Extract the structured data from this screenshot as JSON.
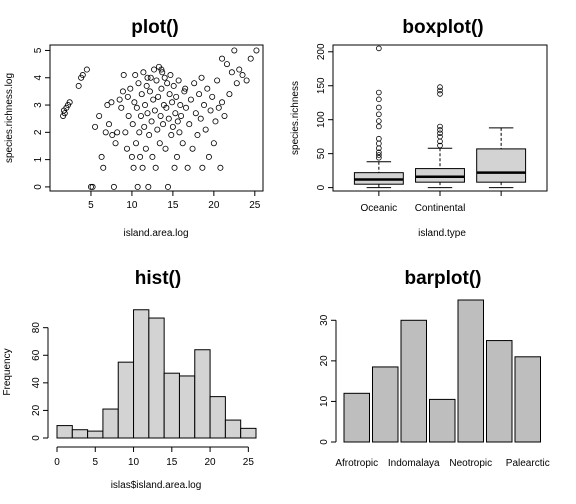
{
  "chart_data": [
    {
      "type": "scatter",
      "title": "plot()",
      "xlabel": "island.area.log",
      "ylabel": "species.richness.log",
      "xlim": [
        0,
        26
      ],
      "ylim": [
        -0.15,
        5.2
      ],
      "x_ticks": [
        "5",
        "10",
        "15",
        "20",
        "25"
      ],
      "y_ticks": [
        "0",
        "1",
        "2",
        "3",
        "4",
        "5"
      ],
      "points": [
        [
          1.6,
          2.6
        ],
        [
          1.8,
          2.7
        ],
        [
          2.0,
          2.9
        ],
        [
          2.2,
          3.0
        ],
        [
          2.4,
          3.1
        ],
        [
          1.7,
          2.8
        ],
        [
          3.5,
          3.7
        ],
        [
          3.8,
          4.0
        ],
        [
          4.0,
          4.1
        ],
        [
          4.5,
          4.3
        ],
        [
          5.0,
          0
        ],
        [
          5.2,
          0
        ],
        [
          5.5,
          2.2
        ],
        [
          6.0,
          2.6
        ],
        [
          6.3,
          1.1
        ],
        [
          6.5,
          0.7
        ],
        [
          7.0,
          3.0
        ],
        [
          7.2,
          2.3
        ],
        [
          7.5,
          3.1
        ],
        [
          7.8,
          0
        ],
        [
          8.0,
          1.6
        ],
        [
          8.2,
          2.0
        ],
        [
          8.5,
          3.2
        ],
        [
          8.7,
          2.9
        ],
        [
          8.9,
          3.5
        ],
        [
          9.0,
          4.1
        ],
        [
          9.2,
          2.0
        ],
        [
          9.4,
          1.4
        ],
        [
          9.6,
          2.6
        ],
        [
          9.8,
          3.6
        ],
        [
          10.0,
          1.1
        ],
        [
          10.1,
          2.3
        ],
        [
          10.2,
          0.7
        ],
        [
          10.3,
          3.1
        ],
        [
          10.4,
          4.1
        ],
        [
          10.5,
          1.6
        ],
        [
          10.6,
          2.9
        ],
        [
          10.7,
          0
        ],
        [
          10.8,
          3.8
        ],
        [
          10.9,
          2.0
        ],
        [
          11.0,
          1.1
        ],
        [
          11.1,
          2.6
        ],
        [
          11.2,
          3.4
        ],
        [
          11.3,
          0.7
        ],
        [
          11.4,
          4.2
        ],
        [
          11.5,
          2.2
        ],
        [
          11.6,
          3.0
        ],
        [
          11.7,
          1.4
        ],
        [
          11.8,
          3.7
        ],
        [
          11.9,
          2.7
        ],
        [
          12.0,
          0
        ],
        [
          12.1,
          1.9
        ],
        [
          12.2,
          3.5
        ],
        [
          12.3,
          4.0
        ],
        [
          12.4,
          2.4
        ],
        [
          12.5,
          1.1
        ],
        [
          12.6,
          3.2
        ],
        [
          12.7,
          4.3
        ],
        [
          12.8,
          2.8
        ],
        [
          12.9,
          0.7
        ],
        [
          13.0,
          3.9
        ],
        [
          13.1,
          2.1
        ],
        [
          13.2,
          3.3
        ],
        [
          13.3,
          4.4
        ],
        [
          13.4,
          1.6
        ],
        [
          13.5,
          2.6
        ],
        [
          13.6,
          3.6
        ],
        [
          13.7,
          4.2
        ],
        [
          13.8,
          2.3
        ],
        [
          13.9,
          3.0
        ],
        [
          14.0,
          4.0
        ],
        [
          14.1,
          1.4
        ],
        [
          14.2,
          2.9
        ],
        [
          14.3,
          3.8
        ],
        [
          14.4,
          0
        ],
        [
          14.5,
          2.5
        ],
        [
          14.6,
          3.4
        ],
        [
          14.7,
          4.1
        ],
        [
          14.8,
          1.9
        ],
        [
          14.9,
          3.1
        ],
        [
          15.0,
          2.2
        ],
        [
          15.1,
          3.7
        ],
        [
          15.2,
          0.7
        ],
        [
          15.3,
          2.7
        ],
        [
          15.4,
          3.3
        ],
        [
          15.5,
          1.1
        ],
        [
          15.6,
          2.4
        ],
        [
          15.7,
          3.9
        ],
        [
          15.8,
          2.0
        ],
        [
          15.9,
          3.0
        ],
        [
          16.0,
          2.6
        ],
        [
          16.2,
          1.6
        ],
        [
          16.4,
          3.5
        ],
        [
          16.6,
          2.9
        ],
        [
          16.8,
          0.7
        ],
        [
          17.0,
          2.3
        ],
        [
          17.2,
          3.2
        ],
        [
          17.4,
          1.4
        ],
        [
          17.6,
          3.8
        ],
        [
          17.8,
          2.7
        ],
        [
          18.0,
          1.9
        ],
        [
          18.2,
          3.4
        ],
        [
          18.4,
          2.5
        ],
        [
          18.6,
          0.7
        ],
        [
          18.8,
          3.0
        ],
        [
          19.0,
          2.1
        ],
        [
          19.2,
          3.6
        ],
        [
          19.4,
          1.1
        ],
        [
          19.6,
          2.8
        ],
        [
          19.8,
          3.3
        ],
        [
          20.0,
          1.6
        ],
        [
          20.2,
          2.4
        ],
        [
          20.4,
          3.9
        ],
        [
          20.6,
          2.9
        ],
        [
          20.8,
          0.7
        ],
        [
          21.0,
          3.1
        ],
        [
          21.3,
          2.6
        ],
        [
          21.6,
          4.5
        ],
        [
          21.9,
          3.4
        ],
        [
          22.2,
          4.2
        ],
        [
          22.5,
          5.0
        ],
        [
          22.8,
          3.8
        ],
        [
          23.1,
          4.3
        ],
        [
          23.5,
          4.1
        ],
        [
          24.0,
          3.9
        ],
        [
          24.5,
          4.7
        ],
        [
          25.2,
          5.0
        ],
        [
          6.8,
          2.0
        ],
        [
          7.6,
          1.9
        ],
        [
          9.5,
          3.3
        ],
        [
          11.9,
          4.0
        ],
        [
          13.6,
          4.3
        ],
        [
          16.5,
          3.6
        ],
        [
          18.5,
          4.0
        ],
        [
          21.0,
          4.7
        ]
      ]
    },
    {
      "type": "box",
      "title": "boxplot()",
      "xlabel": "island.type",
      "ylabel": "species.richness",
      "ylim": [
        -5,
        210
      ],
      "y_ticks": [
        "0",
        "50",
        "100",
        "150",
        "200"
      ],
      "categories": [
        "Oceanic",
        "Continental",
        ""
      ],
      "boxes": [
        {
          "q1": 5,
          "median": 12,
          "q3": 22,
          "lower": 0,
          "upper": 38,
          "outliers": [
            44,
            48,
            52,
            58,
            65,
            72,
            90,
            98,
            108,
            118,
            130,
            140,
            205
          ]
        },
        {
          "q1": 8,
          "median": 16,
          "q3": 28,
          "lower": 0,
          "upper": 58,
          "outliers": [
            62,
            68,
            75,
            80,
            85,
            90,
            138,
            143,
            148
          ]
        },
        {
          "q1": 8,
          "median": 22,
          "q3": 57,
          "lower": 0,
          "upper": 88,
          "outliers": []
        }
      ]
    },
    {
      "type": "histogram",
      "title": "hist()",
      "xlabel": "islas$island.area.log",
      "ylabel": "Frequency",
      "xlim": [
        0,
        26
      ],
      "ylim": [
        0,
        95
      ],
      "x_ticks": [
        "0",
        "5",
        "10",
        "15",
        "20",
        "25"
      ],
      "y_ticks": [
        "0",
        "20",
        "40",
        "60",
        "80"
      ],
      "bin_edges": [
        0,
        2,
        4,
        6,
        8,
        10,
        12,
        14,
        16,
        18,
        20,
        22,
        24,
        26
      ],
      "counts": [
        9,
        6,
        5,
        21,
        55,
        93,
        87,
        47,
        45,
        64,
        30,
        13,
        7
      ]
    },
    {
      "type": "bar",
      "title": "barplot()",
      "xlabel": "",
      "ylabel": "",
      "ylim": [
        0,
        35
      ],
      "y_ticks": [
        "0",
        "10",
        "20",
        "30"
      ],
      "categories": [
        "Afrotropic",
        "",
        "Indomalaya",
        "",
        "Neotropic",
        "",
        "Palearctic"
      ],
      "values": [
        12,
        18.5,
        30,
        10.5,
        35,
        25,
        21
      ]
    }
  ]
}
